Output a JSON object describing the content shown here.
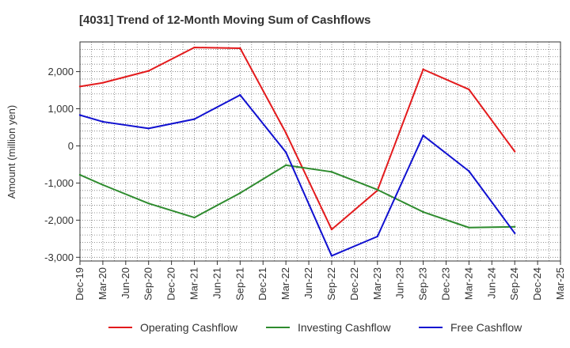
{
  "chart_data": {
    "type": "line",
    "title": "[4031]  Trend of 12-Month Moving Sum of Cashflows",
    "xlabel": "",
    "ylabel": "Amount (million yen)",
    "ylim": [
      -3100,
      2800
    ],
    "yticks": [
      -3000,
      -2000,
      -1000,
      0,
      1000,
      2000
    ],
    "ytick_labels": [
      "-3,000",
      "-2,000",
      "-1,000",
      "0",
      "1,000",
      "2,000"
    ],
    "categories": [
      "Dec-19",
      "Mar-20",
      "Jun-20",
      "Sep-20",
      "Dec-20",
      "Mar-21",
      "Jun-21",
      "Sep-21",
      "Dec-21",
      "Mar-22",
      "Jun-22",
      "Sep-22",
      "Dec-22",
      "Mar-23",
      "Jun-23",
      "Sep-23",
      "Dec-23",
      "Mar-24",
      "Jun-24",
      "Sep-24",
      "Dec-24",
      "Mar-25"
    ],
    "grid": true,
    "legend_position": "bottom",
    "series": [
      {
        "name": "Operating Cashflow",
        "color": "#e31a1c",
        "values": [
          1600,
          1700,
          null,
          2020,
          null,
          2650,
          null,
          2630,
          null,
          350,
          null,
          -2250,
          null,
          -1200,
          null,
          2060,
          null,
          1520,
          null,
          -150,
          null,
          null
        ]
      },
      {
        "name": "Investing Cashflow",
        "color": "#2e8b2e",
        "values": [
          -780,
          -1050,
          null,
          -1550,
          null,
          -1930,
          null,
          -1270,
          null,
          -520,
          null,
          -700,
          null,
          -1180,
          null,
          -1780,
          null,
          -2200,
          null,
          -2180,
          null,
          null
        ]
      },
      {
        "name": "Free Cashflow",
        "color": "#1010d0",
        "values": [
          830,
          650,
          null,
          470,
          null,
          720,
          null,
          1370,
          null,
          -170,
          null,
          -2960,
          null,
          -2440,
          null,
          280,
          null,
          -680,
          null,
          -2350,
          null,
          null
        ]
      }
    ]
  }
}
